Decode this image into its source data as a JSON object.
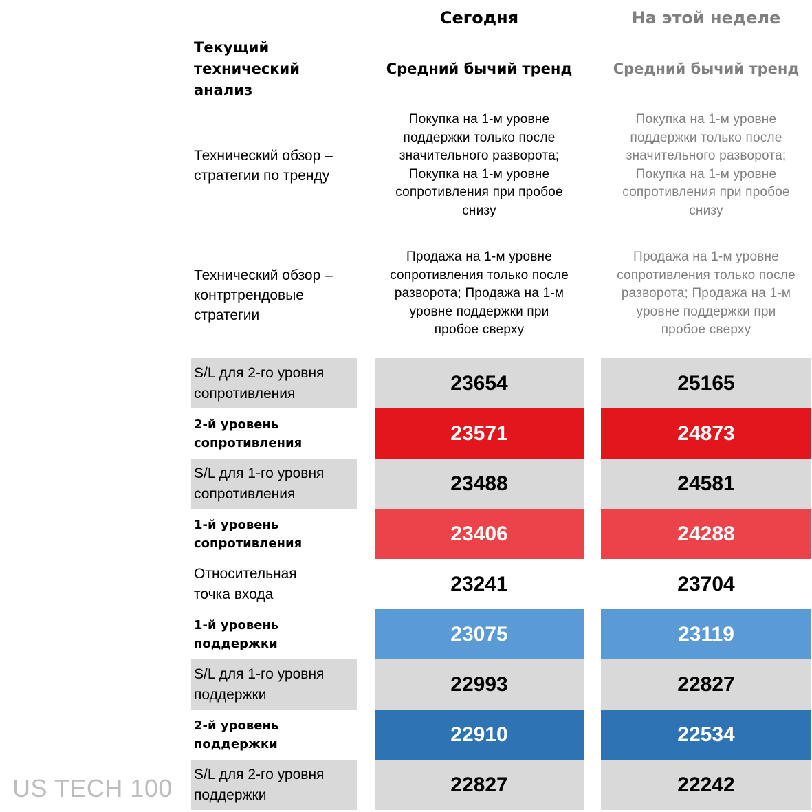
{
  "columns": {
    "today_label": "Сегодня",
    "week_label": "На этой неделе"
  },
  "section": {
    "title_line1": "Текущий",
    "title_line2": "технический",
    "title_line3": "анализ"
  },
  "trend": {
    "today": "Средний бычий тренд",
    "week": "Средний бычий тренд"
  },
  "trend_strategy": {
    "label_line1": "Технический обзор –",
    "label_line2": "стратегии по тренду",
    "today_lines": [
      "Покупка на 1-м уровне",
      "поддержки только после",
      "значительного разворота;",
      "Покупка на 1-м уровне",
      "сопротивления при пробое",
      "снизу"
    ],
    "week_lines": [
      "Покупка на 1-м уровне",
      "поддержки только после",
      "значительного разворота;",
      "Покупка на 1-м уровне",
      "сопротивления при пробое",
      "снизу"
    ]
  },
  "counter_strategy": {
    "label_line1": "Технический обзор –",
    "label_line2": "контртрендовые",
    "label_line3": "стратегии",
    "today_lines": [
      "Продажа на 1-м уровне",
      "сопротивления только после",
      "разворота; Продажа на 1-м",
      "уровне поддержки при",
      "пробое сверху"
    ],
    "week_lines": [
      "Продажа на 1-м уровне",
      "сопротивления только после",
      "разворота; Продажа на 1-м",
      "уровне поддержки при",
      "пробое сверху"
    ]
  },
  "levels": [
    {
      "label_line1": "S/L для 2-го уровня",
      "label_line2": "сопротивления",
      "style": "sl",
      "today": "23654",
      "week": "25165",
      "bg": "#d9d9d9",
      "text_color": "#000000"
    },
    {
      "label_line1": "2-й уровень",
      "label_line2": "сопротивления",
      "style": "level",
      "today": "23571",
      "week": "24873",
      "bg": "#e3161e",
      "text_color": "#ffffff"
    },
    {
      "label_line1": "S/L для 1-го уровня",
      "label_line2": "сопротивления",
      "style": "sl",
      "today": "23488",
      "week": "24581",
      "bg": "#d9d9d9",
      "text_color": "#000000"
    },
    {
      "label_line1": "1-й уровень",
      "label_line2": "сопротивления",
      "style": "level",
      "today": "23406",
      "week": "24288",
      "bg": "#ec434a",
      "text_color": "#ffffff"
    },
    {
      "label_line1": "Относительная",
      "label_line2": "точка входа",
      "style": "entry",
      "today": "23241",
      "week": "23704",
      "bg": "#ffffff",
      "text_color": "#000000"
    },
    {
      "label_line1": "1-й уровень",
      "label_line2": "поддержки",
      "style": "level",
      "today": "23075",
      "week": "23119",
      "bg": "#5b9bd5",
      "text_color": "#ffffff"
    },
    {
      "label_line1": "S/L для 1-го уровня",
      "label_line2": "поддержки",
      "style": "sl",
      "today": "22993",
      "week": "22827",
      "bg": "#d9d9d9",
      "text_color": "#000000"
    },
    {
      "label_line1": "2-й уровень",
      "label_line2": "поддержки",
      "style": "level",
      "today": "22910",
      "week": "22534",
      "bg": "#2e74b5",
      "text_color": "#ffffff"
    },
    {
      "label_line1": "S/L для 2-го уровня",
      "label_line2": "поддержки",
      "style": "sl",
      "today": "22827",
      "week": "22242",
      "bg": "#d9d9d9",
      "text_color": "#000000"
    }
  ],
  "watermark": "US TECH 100"
}
